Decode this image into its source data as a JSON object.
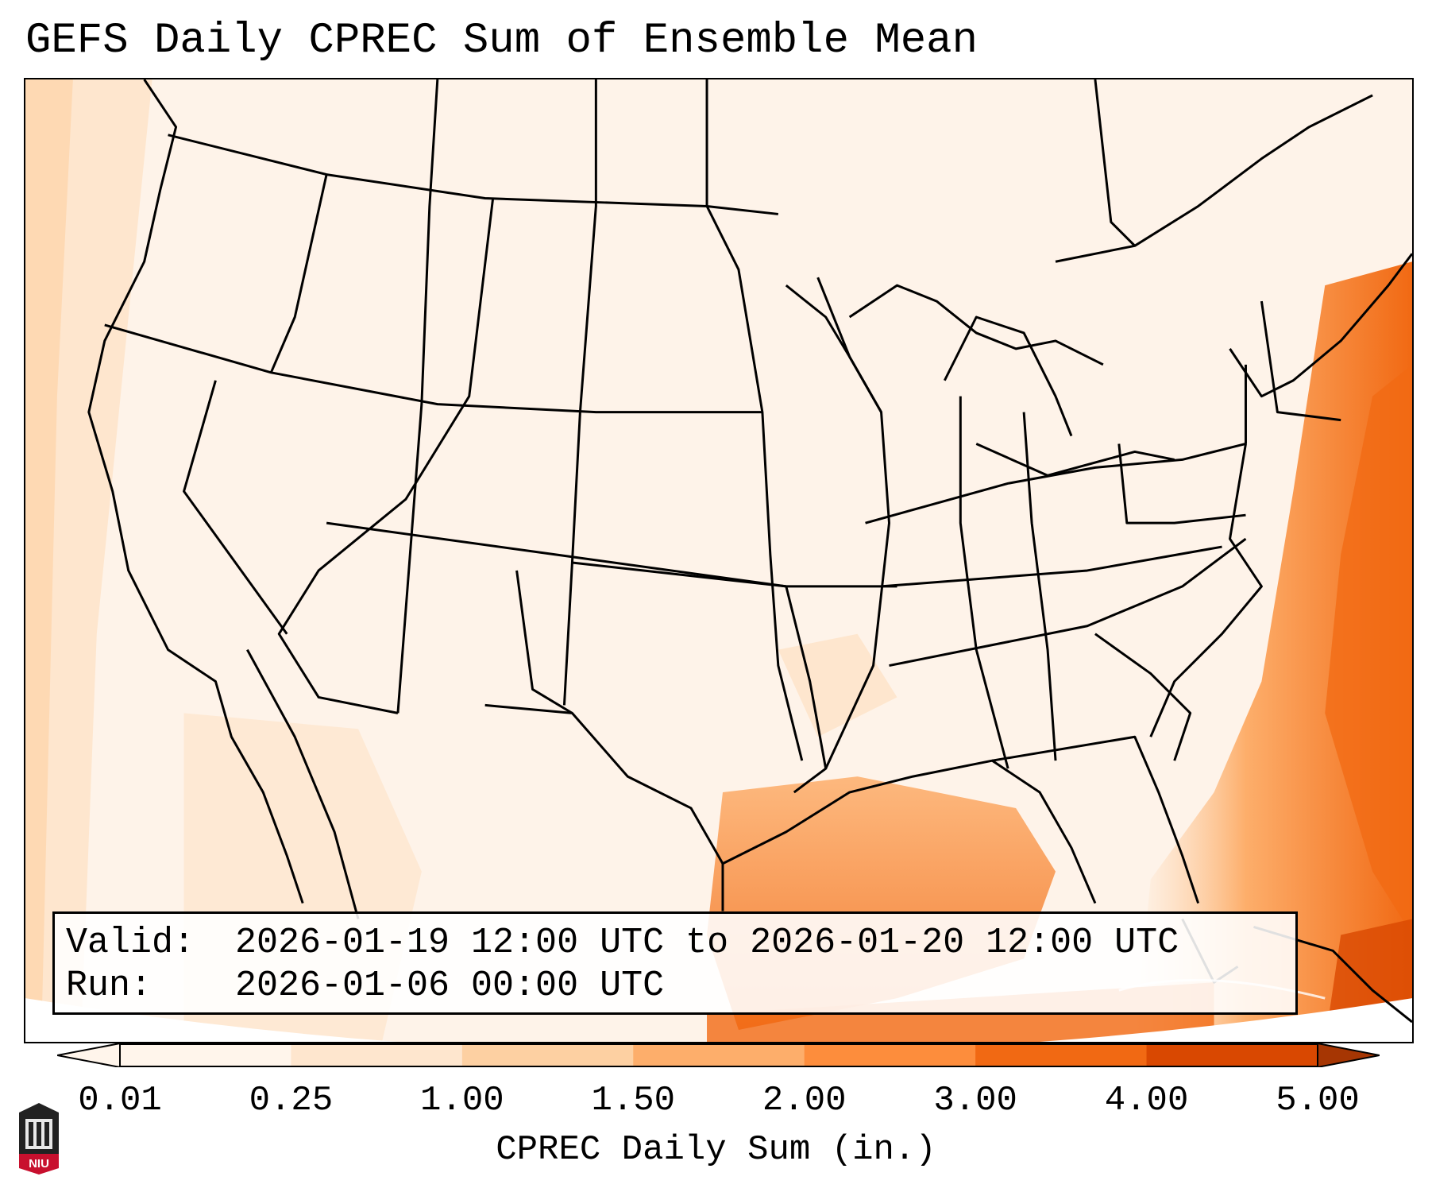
{
  "title": "GEFS Daily CPREC Sum of Ensemble Mean",
  "info": {
    "valid_label": "Valid:",
    "valid_value": "2026-01-19 12:00 UTC to 2026-01-20 12:00 UTC",
    "run_label": "Run:",
    "run_value": "2026-01-06 00:00 UTC"
  },
  "colorbar": {
    "label": "CPREC Daily Sum (in.)",
    "ticks": [
      "0.01",
      "0.25",
      "1.00",
      "1.50",
      "2.00",
      "3.00",
      "4.00",
      "5.00"
    ],
    "colors": [
      "#fff5eb",
      "#fee6ce",
      "#fdd0a2",
      "#fdae6b",
      "#fd8d3c",
      "#f16913",
      "#d94801",
      "#a63603"
    ],
    "extend": "both"
  },
  "logo": {
    "text": "NIU",
    "colors": {
      "dark": "#222222",
      "accent": "#c8102e"
    }
  }
}
